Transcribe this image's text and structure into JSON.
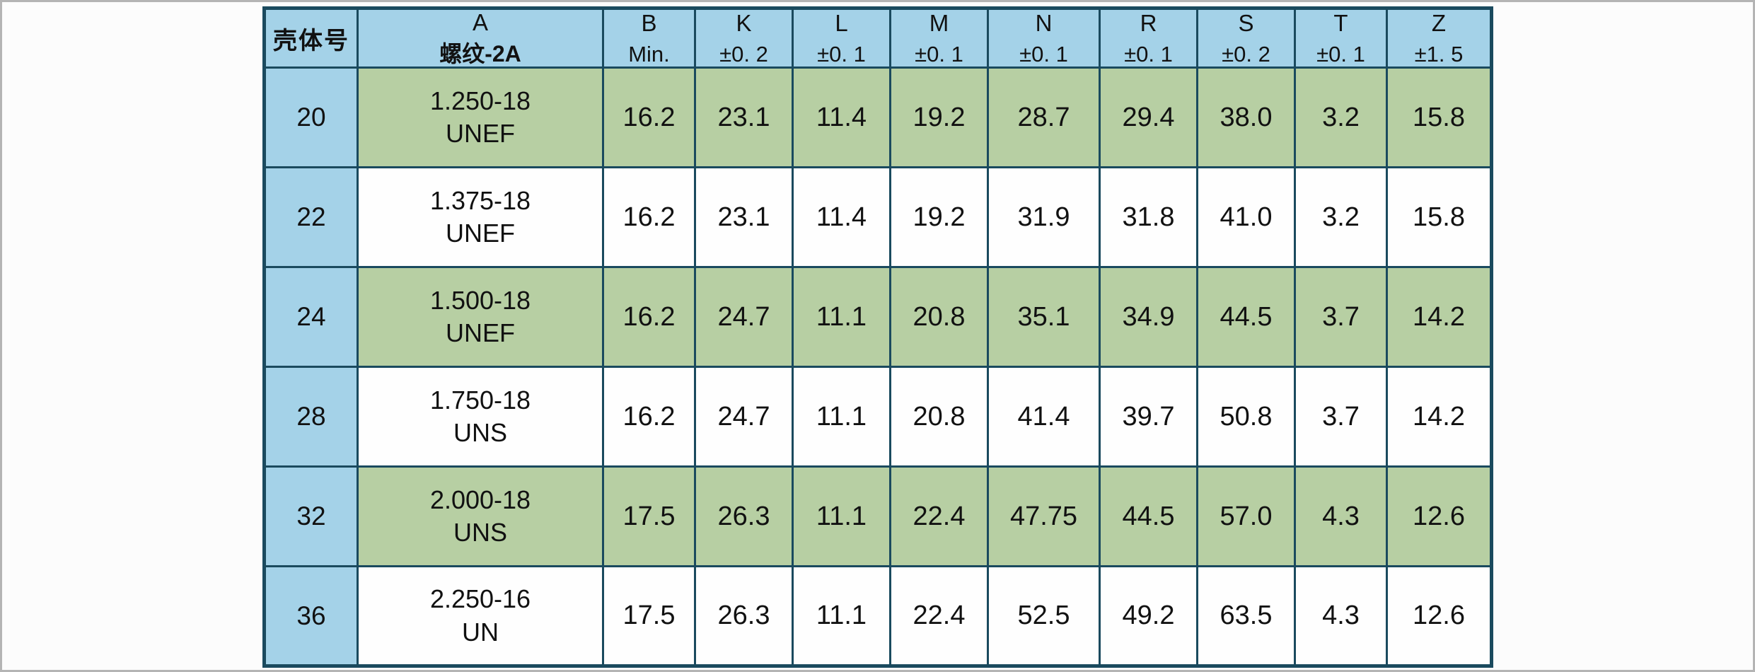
{
  "table": {
    "header": {
      "shell": "壳体号",
      "cols": [
        {
          "letter": "A",
          "tolerance": "螺纹-2A"
        },
        {
          "letter": "B",
          "tolerance": "Min."
        },
        {
          "letter": "K",
          "tolerance": "±0. 2"
        },
        {
          "letter": "L",
          "tolerance": "±0. 1"
        },
        {
          "letter": "M",
          "tolerance": "±0. 1"
        },
        {
          "letter": "N",
          "tolerance": "±0. 1"
        },
        {
          "letter": "R",
          "tolerance": "±0. 1"
        },
        {
          "letter": "S",
          "tolerance": "±0. 2"
        },
        {
          "letter": "T",
          "tolerance": "±0. 1"
        },
        {
          "letter": "Z",
          "tolerance": "±1. 5"
        }
      ]
    },
    "rows": [
      {
        "shell": "20",
        "thread_size": "1.250-18",
        "thread_series": "UNEF",
        "B": "16.2",
        "K": "23.1",
        "L": "11.4",
        "M": "19.2",
        "N": "28.7",
        "R": "29.4",
        "S": "38.0",
        "T": "3.2",
        "Z": "15.8",
        "shaded": true
      },
      {
        "shell": "22",
        "thread_size": "1.375-18",
        "thread_series": "UNEF",
        "B": "16.2",
        "K": "23.1",
        "L": "11.4",
        "M": "19.2",
        "N": "31.9",
        "R": "31.8",
        "S": "41.0",
        "T": "3.2",
        "Z": "15.8",
        "shaded": false
      },
      {
        "shell": "24",
        "thread_size": "1.500-18",
        "thread_series": "UNEF",
        "B": "16.2",
        "K": "24.7",
        "L": "11.1",
        "M": "20.8",
        "N": "35.1",
        "R": "34.9",
        "S": "44.5",
        "T": "3.7",
        "Z": "14.2",
        "shaded": true
      },
      {
        "shell": "28",
        "thread_size": "1.750-18",
        "thread_series": "UNS",
        "B": "16.2",
        "K": "24.7",
        "L": "11.1",
        "M": "20.8",
        "N": "41.4",
        "R": "39.7",
        "S": "50.8",
        "T": "3.7",
        "Z": "14.2",
        "shaded": false
      },
      {
        "shell": "32",
        "thread_size": "2.000-18",
        "thread_series": "UNS",
        "B": "17.5",
        "K": "26.3",
        "L": "11.1",
        "M": "22.4",
        "N": "47.75",
        "R": "44.5",
        "S": "57.0",
        "T": "4.3",
        "Z": "12.6",
        "shaded": true
      },
      {
        "shell": "36",
        "thread_size": "2.250-16",
        "thread_series": "UN",
        "B": "17.5",
        "K": "26.3",
        "L": "11.1",
        "M": "22.4",
        "N": "52.5",
        "R": "49.2",
        "S": "63.5",
        "T": "4.3",
        "Z": "12.6",
        "shaded": false
      }
    ]
  },
  "colors": {
    "header_blue": "#a4d2e8",
    "row_green": "#b7cfa3",
    "row_white": "#fefefe",
    "grid_border": "#1a4a5e",
    "text": "#111111"
  }
}
